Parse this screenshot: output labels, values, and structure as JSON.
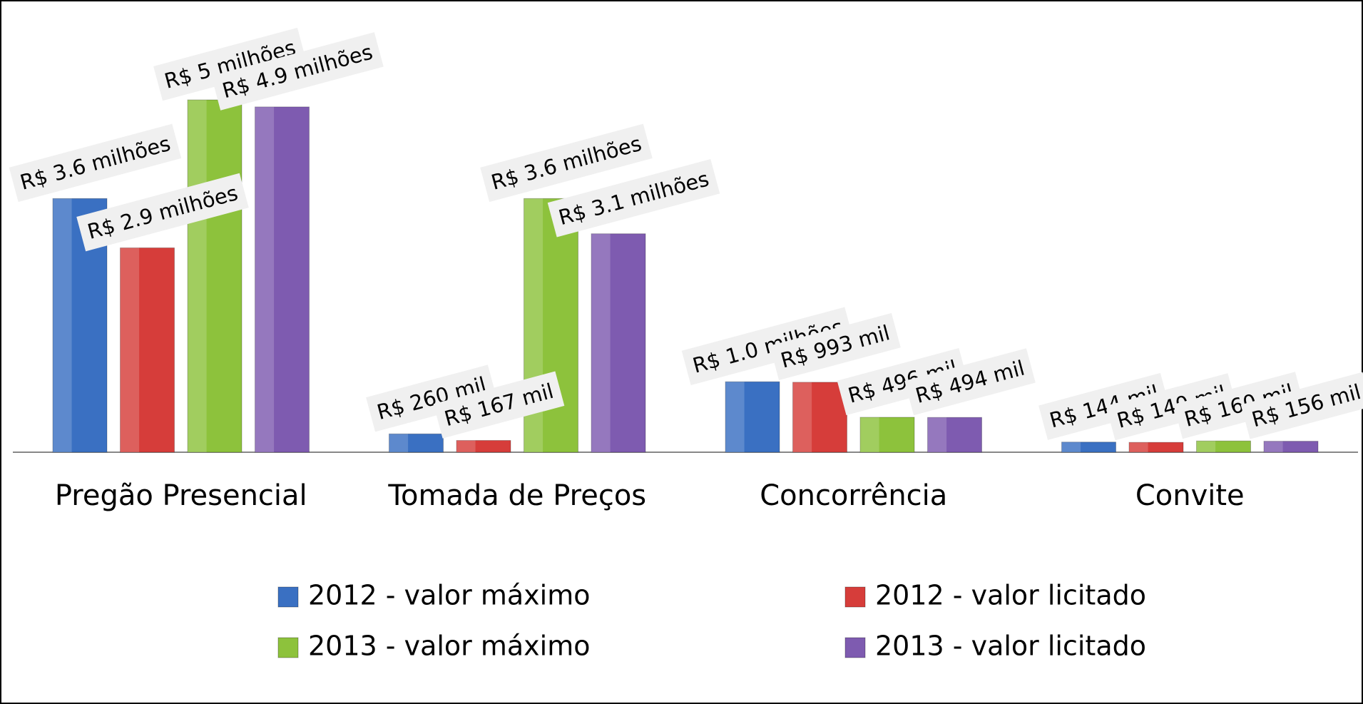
{
  "chart_data": {
    "type": "bar",
    "categories": [
      "Pregão Presencial",
      "Tomada de Preços",
      "Concorrência",
      "Convite"
    ],
    "series": [
      {
        "name": "2012 - valor máximo",
        "color": "#3a70c2",
        "values": [
          3600000,
          260000,
          1000000,
          144000
        ],
        "value_labels": [
          "R$ 3.6 milhões",
          "R$ 260 mil",
          "R$ 1.0 milhões",
          "R$ 144 mil"
        ]
      },
      {
        "name": "2012 - valor licitado",
        "color": "#d63d3a",
        "values": [
          2900000,
          167000,
          993000,
          140000
        ],
        "value_labels": [
          "R$ 2.9 milhões",
          "R$ 167 mil",
          "R$ 993 mil",
          "R$ 140 mil"
        ]
      },
      {
        "name": "2013 - valor máximo",
        "color": "#8dc23c",
        "values": [
          5000000,
          3600000,
          496000,
          160000
        ],
        "value_labels": [
          "R$ 5 milhões",
          "R$ 3.6 milhões",
          "R$ 496 mil",
          "R$ 160 mil"
        ]
      },
      {
        "name": "2013 - valor licitado",
        "color": "#7e5bb0",
        "values": [
          4900000,
          3100000,
          494000,
          156000
        ],
        "value_labels": [
          "R$ 4.9 milhões",
          "R$ 3.1 milhões",
          "R$ 494 mil",
          "R$ 156 mil"
        ]
      }
    ],
    "legend": "bottom"
  }
}
